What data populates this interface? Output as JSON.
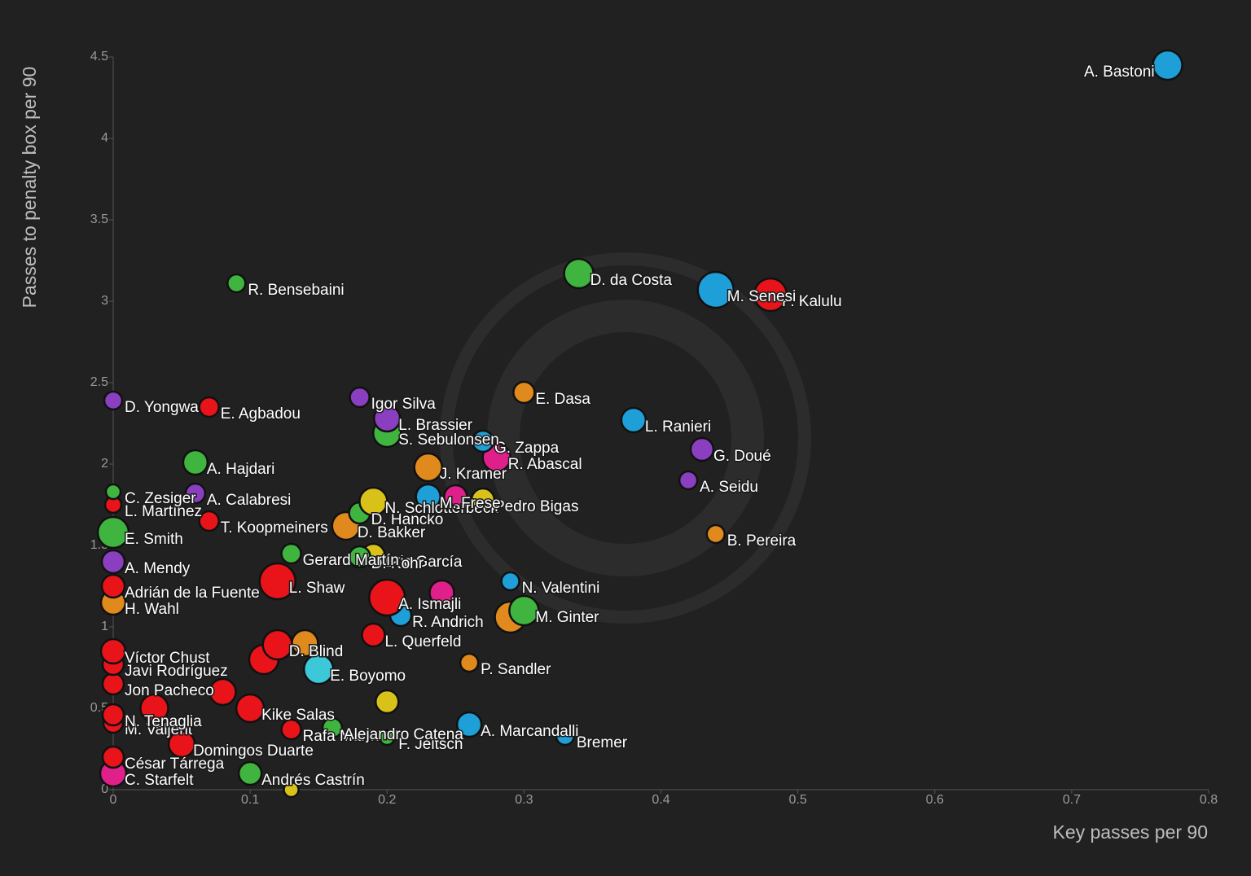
{
  "chart_data": {
    "type": "scatter",
    "x_label": "Key passes per 90",
    "y_label": "Passes to penalty box per 90",
    "xlim": [
      0,
      0.8
    ],
    "ylim": [
      0,
      4.5
    ],
    "xticks": [
      0,
      0.1,
      0.2,
      0.3,
      0.4,
      0.5,
      0.6,
      0.7,
      0.8
    ],
    "yticks": [
      0,
      0.5,
      1,
      1.5,
      2,
      2.5,
      3,
      3.5,
      4,
      4.5
    ],
    "labels": [
      "A. Bastoni",
      "D. da Costa",
      "M. Senesi",
      "P. Kalulu",
      "R. Bensebaini",
      "E. Dasa",
      "L. Ranieri",
      "G. Doué",
      "A. Seidu",
      "B. Pereira",
      "N. Valentini",
      "M. Ginter",
      null,
      "P. Sandler",
      "A. Marcandalli",
      "Bremer",
      "D. Yongwa",
      "E. Agbadou",
      "Igor Silva",
      "L. Brassier",
      "S. Sebulonsen",
      "G. Zappa",
      "R. Abascal",
      "J. Kramer",
      "A. Hajdari",
      "M. Frese",
      "A. Calabresi",
      "C. Zesiger",
      "L. Martínez",
      "Pedro Bigas",
      "N. Schlotterbeck",
      "D. Hancko",
      "T. Koopmeiners",
      "D. Bakker",
      "E. Smith",
      "Gerard Martín",
      "D. Kohr",
      "Eric García",
      "A. Mendy",
      "Adrián de la Fuente",
      "L. Shaw",
      "A. Ismajli",
      "H. Wahl",
      "R. Andrich",
      "D. Blind",
      "L. Querfeld",
      "E. Boyomo",
      "Kike Salas",
      "Alejandro Catena",
      "Rafa Marín",
      "F. Jeltsch",
      "Víctor Chust",
      "Javi Rodríguez",
      "Jon Pacheco",
      "N. Tenaglia",
      "M. Valjent",
      "Domingos Duarte",
      "César Tárrega",
      "C. Starfelt",
      "Andrés Castrín",
      null,
      null,
      null,
      null,
      null,
      null,
      null,
      null
    ],
    "x": [
      0.77,
      0.34,
      0.44,
      0.48,
      0.09,
      0.3,
      0.38,
      0.43,
      0.42,
      0.44,
      0.29,
      0.3,
      0.29,
      0.26,
      0.26,
      0.33,
      0,
      0.07,
      0.18,
      0.2,
      0.2,
      0.27,
      0.28,
      0.23,
      0.06,
      0.23,
      0.06,
      0,
      0,
      0.27,
      0.19,
      0.18,
      0.07,
      0.17,
      0,
      0.13,
      0.18,
      0.19,
      0,
      0,
      0.12,
      0.2,
      0,
      0.21,
      0.12,
      0.19,
      0.15,
      0.1,
      0.16,
      0.13,
      0.2,
      0,
      0,
      0,
      0,
      0,
      0.05,
      0,
      0,
      0.1,
      0.2,
      0.13,
      0.11,
      0.08,
      0.24,
      0.25,
      0.03,
      0.14
    ],
    "values": [
      4.45,
      3.17,
      3.07,
      3.04,
      3.11,
      2.44,
      2.27,
      2.09,
      1.9,
      1.57,
      1.28,
      1.1,
      1.06,
      0.78,
      0.4,
      0.33,
      2.39,
      2.35,
      2.41,
      2.28,
      2.19,
      2.14,
      2.04,
      1.98,
      2.01,
      1.8,
      1.82,
      1.83,
      1.75,
      1.78,
      1.77,
      1.7,
      1.65,
      1.62,
      1.58,
      1.45,
      1.43,
      1.44,
      1.4,
      1.25,
      1.28,
      1.18,
      1.15,
      1.07,
      0.89,
      0.95,
      0.74,
      0.5,
      0.38,
      0.37,
      0.32,
      0.85,
      0.77,
      0.65,
      0.46,
      0.41,
      0.28,
      0.2,
      0.1,
      0.1,
      0.54,
      0,
      0.8,
      0.6,
      1.21,
      1.8,
      0.5,
      0.9
    ],
    "sizes": [
      18,
      18,
      22,
      20,
      11,
      13,
      15,
      14,
      11,
      11,
      11,
      18,
      19,
      11,
      15,
      11,
      11,
      12,
      12,
      16,
      17,
      13,
      17,
      17,
      15,
      15,
      12,
      9,
      10,
      14,
      17,
      13,
      12,
      17,
      19,
      12,
      13,
      14,
      14,
      14,
      22,
      22,
      15,
      13,
      18,
      14,
      18,
      17,
      12,
      12,
      9,
      15,
      13,
      13,
      13,
      12,
      16,
      13,
      16,
      14,
      14,
      9,
      18,
      16,
      15,
      14,
      17,
      16
    ],
    "colors": [
      "#1e9fd8",
      "#3fb43f",
      "#1e9fd8",
      "#e8141a",
      "#3fb43f",
      "#e08a1e",
      "#1e9fd8",
      "#8a3fc0",
      "#8a3fc0",
      "#e08a1e",
      "#1e9fd8",
      "#3fb43f",
      "#e08a1e",
      "#e08a1e",
      "#1e9fd8",
      "#1e9fd8",
      "#8a3fc0",
      "#e8141a",
      "#8a3fc0",
      "#8a3fc0",
      "#3fb43f",
      "#1e9fd8",
      "#e0208a",
      "#e08a1e",
      "#3fb43f",
      "#1e9fd8",
      "#8a3fc0",
      "#3fb43f",
      "#e8141a",
      "#d8c21a",
      "#d8c21a",
      "#3fb43f",
      "#e8141a",
      "#e08a1e",
      "#3fb43f",
      "#3fb43f",
      "#3fb43f",
      "#d8c21a",
      "#8a3fc0",
      "#e8141a",
      "#e8141a",
      "#e8141a",
      "#e08a1e",
      "#1e9fd8",
      "#e8141a",
      "#e8141a",
      "#3cc8d8",
      "#e8141a",
      "#3fb43f",
      "#e8141a",
      "#3fb43f",
      "#e8141a",
      "#e8141a",
      "#e8141a",
      "#e8141a",
      "#e8141a",
      "#e8141a",
      "#e8141a",
      "#e0208a",
      "#3fb43f",
      "#d8c21a",
      "#d8c21a",
      "#e8141a",
      "#e8141a",
      "#e0208a",
      "#e0208a",
      "#e8141a",
      "#e08a1e"
    ]
  }
}
